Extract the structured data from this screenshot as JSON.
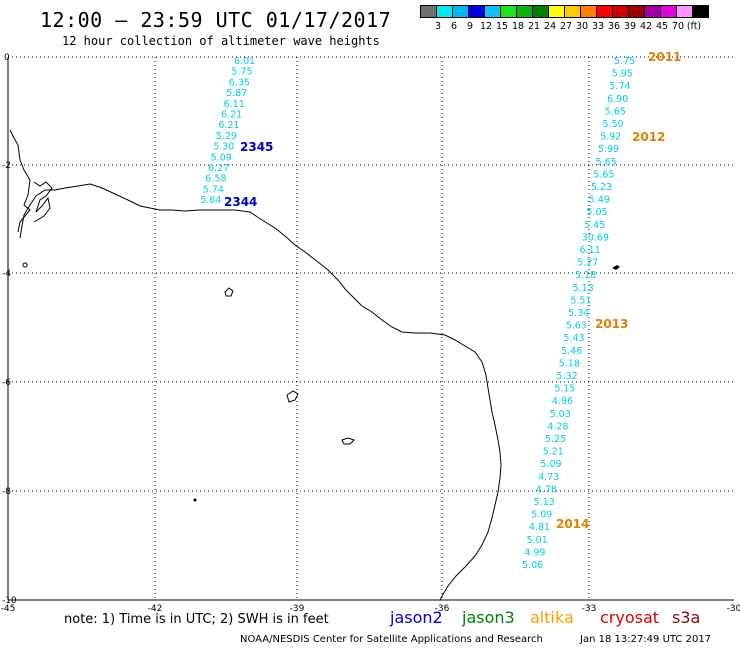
{
  "header": {
    "title": "12:00 – 23:59 UTC 01/17/2017",
    "subtitle": "12 hour collection of altimeter wave heights"
  },
  "scale": {
    "colors": [
      "#707070",
      "#00e8f0",
      "#00b8f0",
      "#0000e0",
      "#10c0ff",
      "#20e020",
      "#10b010",
      "#008000",
      "#ffff00",
      "#ffc800",
      "#ff8000",
      "#ff0000",
      "#d00000",
      "#a00000",
      "#a000a0",
      "#e000e0",
      "#ff90ff",
      "#000000"
    ],
    "labels": [
      "3",
      "6",
      "9",
      "12",
      "15",
      "18",
      "21",
      "24",
      "27",
      "30",
      "33",
      "36",
      "39",
      "42",
      "45",
      "70",
      "(ft)"
    ]
  },
  "axes": {
    "x_ticks": [
      "-45",
      "-42",
      "-39",
      "-36",
      "-33",
      "-30"
    ],
    "y_ticks": [
      "0",
      "-2",
      "-4",
      "-6",
      "-8",
      "-10"
    ]
  },
  "tracks": [
    {
      "pass_labels": [
        {
          "text": "2345",
          "color": "#0000c0"
        },
        {
          "text": "2344",
          "color": "#0000c0"
        }
      ],
      "values": [
        "6.01",
        "5.75",
        "6.35",
        "5.87",
        "6.11",
        "6.21",
        "6.21",
        "5.29",
        "5.30",
        "5.09",
        "6.27",
        "6.58",
        "5.74",
        "5.64"
      ]
    },
    {
      "pass_labels": [
        {
          "text": "2011",
          "color": "#e08000"
        },
        {
          "text": "2012",
          "color": "#e08000"
        },
        {
          "text": "2013",
          "color": "#e08000"
        },
        {
          "text": "2014",
          "color": "#e08000"
        }
      ],
      "values": [
        "5.75",
        "5.95",
        "5.74",
        "6.90",
        "5.65",
        "5.50",
        "5.92",
        "5.99",
        "5.65",
        "5.65",
        "5.23",
        "5.49",
        "5.05",
        "5.45",
        "30.69",
        "6.11",
        "5.27",
        "5.18",
        "5.13",
        "5.51",
        "5.34",
        "5.63",
        "5.43",
        "5.46",
        "5.18",
        "5.32",
        "5.15",
        "4.96",
        "5.03",
        "4.28",
        "5.25",
        "5.21",
        "5.09",
        "4.73",
        "4.78",
        "5.13",
        "5.09",
        "4.81",
        "5.01",
        "4.99",
        "5.06"
      ],
      "highlight": {
        "index": 14,
        "color": "#d00000"
      }
    }
  ],
  "footer": {
    "note": "note:  1) Time is in UTC;  2) SWH is in feet",
    "legend": [
      {
        "name": "jason2",
        "color": "#0000e0"
      },
      {
        "name": "jason3",
        "color": "#008000"
      },
      {
        "name": "altika",
        "color": "#ffa000"
      },
      {
        "name": "cryosat",
        "color": "#e00000"
      },
      {
        "name": "s3a",
        "color": "#8b0000"
      }
    ],
    "credit": "NOAA/NESDIS Center for Satellite Applications and Research",
    "timestamp": "Jan 18 13:27:49 UTC 2017"
  }
}
